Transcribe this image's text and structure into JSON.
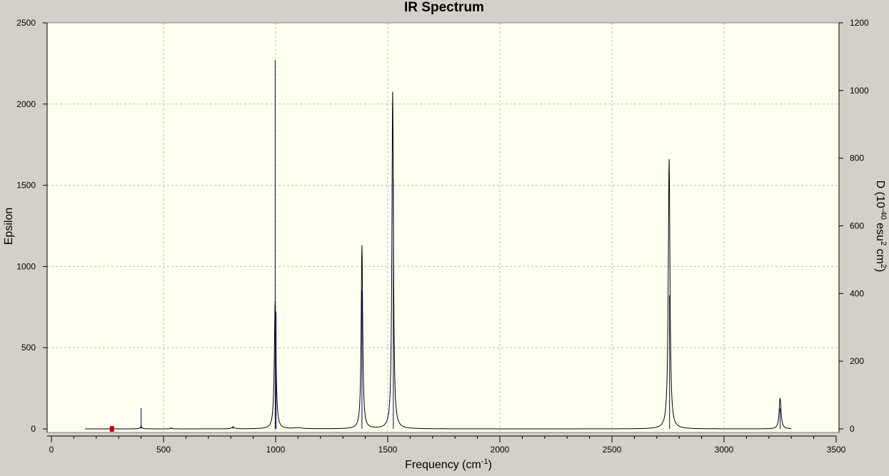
{
  "chart_data": {
    "type": "line",
    "title": "IR Spectrum",
    "xlabel": {
      "main": "Frequency (cm",
      "sup": "-1",
      "end": ")"
    },
    "ylabel_left": "Epsilon",
    "ylabel_right": {
      "a": "D (10",
      "sup1": "-40",
      "b": " esu",
      "sup2": "2",
      "c": " cm",
      "sup3": "2",
      "d": ")"
    },
    "xlim": [
      0,
      3500
    ],
    "ylim_left": [
      0,
      2500
    ],
    "ylim_right": [
      0,
      1200
    ],
    "x_ticks": [
      0,
      500,
      1000,
      1500,
      2000,
      2500,
      3000,
      3500
    ],
    "y_ticks_left": [
      0,
      500,
      1000,
      1500,
      2000,
      2500
    ],
    "y_ticks_right": [
      0,
      200,
      400,
      600,
      800,
      1000,
      1200
    ],
    "grid": true,
    "colors": {
      "background": "#d4d0c8",
      "plot_background": "#fffff0",
      "spectrum_line": "#000000",
      "stick_line": "#00007f",
      "grid": "#bfbfbf",
      "marker": "#cc0000"
    },
    "spectrum_peaks": [
      {
        "x": 270,
        "epsilon": 3,
        "width": 12
      },
      {
        "x": 400,
        "epsilon": 15,
        "width": 10
      },
      {
        "x": 535,
        "epsilon": 4,
        "width": 10
      },
      {
        "x": 810,
        "epsilon": 12,
        "width": 14
      },
      {
        "x": 998,
        "epsilon": 790,
        "width": 9
      },
      {
        "x": 1100,
        "epsilon": 6,
        "width": 40
      },
      {
        "x": 1385,
        "epsilon": 1130,
        "width": 8
      },
      {
        "x": 1522,
        "epsilon": 2075,
        "width": 8
      },
      {
        "x": 2755,
        "epsilon": 1660,
        "width": 9
      },
      {
        "x": 3250,
        "epsilon": 190,
        "width": 10
      }
    ],
    "sticks": [
      {
        "x": 270,
        "D": 2
      },
      {
        "x": 400,
        "D": 62
      },
      {
        "x": 535,
        "D": 5
      },
      {
        "x": 810,
        "D": 8
      },
      {
        "x": 998,
        "D": 1090
      },
      {
        "x": 1002,
        "D": 345
      },
      {
        "x": 1385,
        "D": 410
      },
      {
        "x": 1525,
        "D": 740
      },
      {
        "x": 2757,
        "D": 395
      },
      {
        "x": 3250,
        "D": 60
      }
    ],
    "marker": {
      "x": 270,
      "epsilon": 0
    }
  }
}
